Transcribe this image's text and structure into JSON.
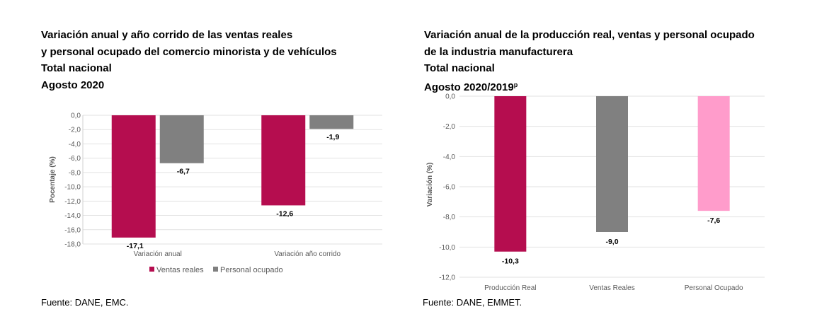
{
  "colors": {
    "ventas": "#b50d4f",
    "personal": "#808080",
    "produccion": "#b50d4f",
    "ventas_reales": "#808080",
    "personal_ocupado": "#ff9ccb",
    "grid": "#e2e2e2"
  },
  "left": {
    "title_lines": [
      "Variación anual y año corrido de las ventas reales",
      "y personal ocupado del comercio minorista y de vehículos",
      "Total nacional",
      "Agosto 2020"
    ],
    "source": "Fuente: DANE, EMC."
  },
  "right": {
    "title_lines": [
      "Variación anual de la producción real, ventas y personal ocupado",
      "de la industria manufacturera",
      "Total nacional"
    ],
    "title_last_line": "Agosto 2020/2019",
    "title_superscript": "p",
    "source": "Fuente: DANE, EMMET."
  },
  "chart_data": [
    {
      "type": "bar",
      "ylabel": "Pocentaje (%)",
      "ylim": [
        -18,
        0
      ],
      "ytick_step": 2,
      "ytick_labels": [
        "0,0",
        "-2,0",
        "-4,0",
        "-6,0",
        "-8,0",
        "-10,0",
        "-12,0",
        "-14,0",
        "-16,0",
        "-18,0"
      ],
      "categories": [
        "Variación anual",
        "Variación año corrido"
      ],
      "series": [
        {
          "name": "Ventas reales",
          "values": [
            -17.1,
            -12.6
          ],
          "labels": [
            "-17,1",
            "-12,6"
          ],
          "color": "#b50d4f"
        },
        {
          "name": "Personal ocupado",
          "values": [
            -6.7,
            -1.9
          ],
          "labels": [
            "-6,7",
            "-1,9"
          ],
          "color": "#808080"
        }
      ],
      "legend": "bottom",
      "grid": true
    },
    {
      "type": "bar",
      "ylabel": "Variación (%)",
      "ylim": [
        -12,
        0
      ],
      "ytick_step": 2,
      "ytick_labels": [
        "0,0",
        "-2,0",
        "-4,0",
        "-6,0",
        "-8,0",
        "-10,0",
        "-12,0"
      ],
      "categories": [
        "Producción Real",
        "Ventas Reales",
        "Personal Ocupado"
      ],
      "values": [
        -10.3,
        -9.0,
        -7.6
      ],
      "labels": [
        "-10,3",
        "-9,0",
        "-7,6"
      ],
      "colors": [
        "#b50d4f",
        "#808080",
        "#ff9ccb"
      ],
      "legend": "none",
      "grid": true
    }
  ]
}
